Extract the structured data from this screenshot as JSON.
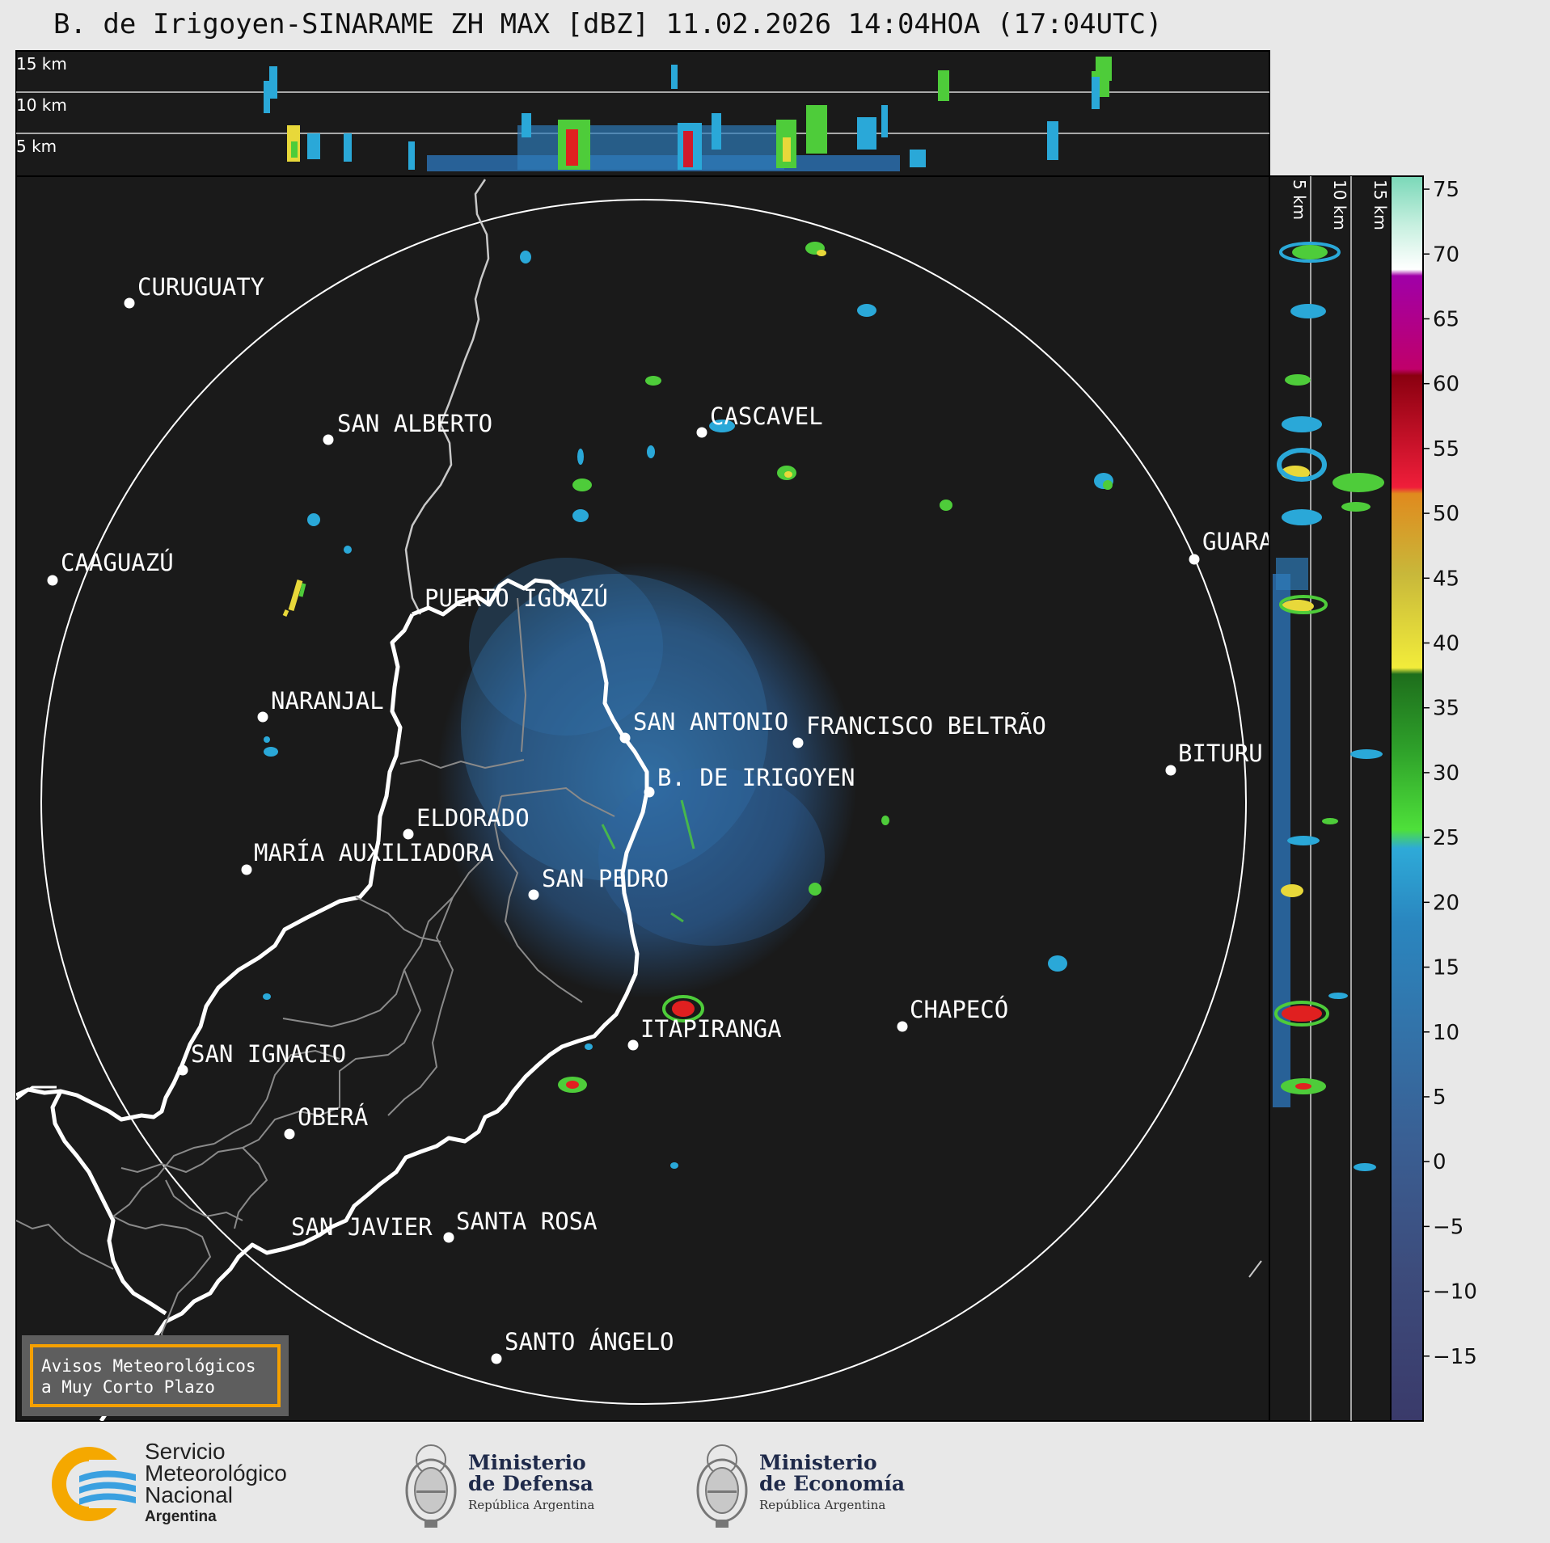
{
  "title": "B. de Irigoyen-SINARAME ZH MAX [dBZ] 11.02.2026 14:04HOA (17:04UTC)",
  "cross_section_top": {
    "labels": [
      "15 km",
      "10 km",
      "5 km"
    ]
  },
  "cross_section_right": {
    "labels": [
      "5 km",
      "10 km",
      "15 km"
    ]
  },
  "cities": [
    {
      "name": "CURUGUATY"
    },
    {
      "name": "SAN ALBERTO"
    },
    {
      "name": "CASCAVEL"
    },
    {
      "name": "CAAGUAZÚ"
    },
    {
      "name": "GUARA"
    },
    {
      "name": "PUERTO IGUAZÚ"
    },
    {
      "name": "NARANJAL"
    },
    {
      "name": "SAN ANTONIO"
    },
    {
      "name": "FRANCISCO BELTRÃO"
    },
    {
      "name": "BITURU"
    },
    {
      "name": "B. DE IRIGOYEN"
    },
    {
      "name": "ELDORADO"
    },
    {
      "name": "MARÍA AUXILIADORA"
    },
    {
      "name": "SAN PEDRO"
    },
    {
      "name": "CHAPECÓ"
    },
    {
      "name": "ITAPIRANGA"
    },
    {
      "name": "SAN IGNACIO"
    },
    {
      "name": "OBERÁ"
    },
    {
      "name": "SAN JAVIER"
    },
    {
      "name": "SANTA ROSA"
    },
    {
      "name": "SANTO ÁNGELO"
    }
  ],
  "notice": {
    "line1": "Avisos Meteorológicos",
    "line2": "a Muy Corto Plazo",
    "border_color": "#f5a000"
  },
  "colorbar": {
    "ticks": [
      "75",
      "70",
      "65",
      "60",
      "55",
      "50",
      "45",
      "40",
      "35",
      "30",
      "25",
      "20",
      "15",
      "10",
      "5",
      "0",
      "−5",
      "−10",
      "−15"
    ],
    "range": [
      -20,
      76
    ]
  },
  "logos": {
    "smn": {
      "line1": "Servicio",
      "line2": "Meteorológico",
      "line3": "Nacional",
      "line4": "Argentina"
    },
    "defensa": {
      "line1": "Ministerio",
      "line2": "de Defensa",
      "line3": "República Argentina"
    },
    "economia": {
      "line1": "Ministerio",
      "line2": "de Economía",
      "line3": "República Argentina"
    }
  },
  "colors": {
    "map_background": "#1a1a1a",
    "page_background": "#e8e8e8",
    "weak_echo": "#2a7bb5",
    "smn_orange": "#f5a800",
    "smn_blue": "#3aa0e0"
  }
}
